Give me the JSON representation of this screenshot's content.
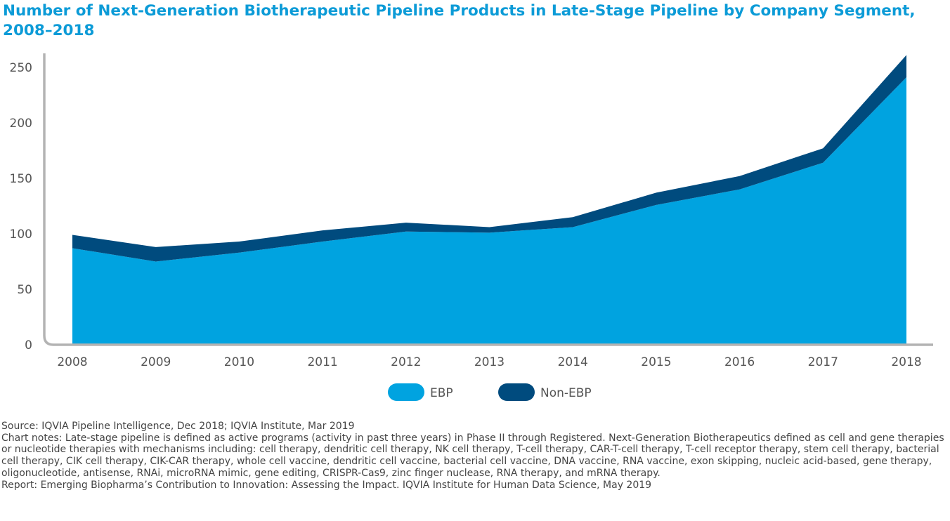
{
  "chart_data": {
    "type": "area",
    "stacked": true,
    "title": "Number of Next-Generation Biotherapeutic Pipeline Products in Late-Stage Pipeline by Company Segment, 2008–2018",
    "xlabel": "",
    "ylabel": "",
    "x": [
      "2008",
      "2009",
      "2010",
      "2011",
      "2012",
      "2013",
      "2014",
      "2015",
      "2016",
      "2017",
      "2018"
    ],
    "ylim": [
      0,
      260
    ],
    "yticks": [
      "0",
      "50",
      "100",
      "150",
      "200",
      "250"
    ],
    "grid": false,
    "legend_position": "bottom",
    "series": [
      {
        "name": "EBP",
        "color": "#00a3e0",
        "values": [
          87,
          75,
          83,
          93,
          102,
          101,
          106,
          126,
          140,
          164,
          241
        ]
      },
      {
        "name": "Non-EBP",
        "color": "#004b7e",
        "values": [
          12,
          13,
          10,
          10,
          8,
          5,
          9,
          11,
          12,
          13,
          20
        ]
      }
    ],
    "axis_color": "#b3b3b3"
  },
  "notes": {
    "source": "Source: IQVIA Pipeline Intelligence, Dec 2018; IQVIA Institute, Mar 2019",
    "chart_notes": "Chart notes: Late-stage pipeline is defined as active programs (activity in past three years) in Phase II through Registered. Next-Generation Biotherapeutics defined as cell and gene therapies or nucleotide therapies with mechanisms including: cell therapy, dendritic cell therapy, NK cell therapy, T-cell therapy, CAR-T-cell therapy, T-cell receptor therapy, stem cell therapy, bacterial cell therapy, CIK cell therapy, CIK-CAR therapy, whole cell vaccine, dendritic cell vaccine, bacterial cell vaccine, DNA vaccine, RNA vaccine, exon skipping, nucleic acid-based, gene therapy, oligonucleotide, antisense, RNAi, microRNA mimic, gene editing, CRISPR-Cas9, zinc finger nuclease, RNA therapy, and mRNA therapy.",
    "report": "Report: Emerging Biopharma’s Contribution to Innovation: Assessing the Impact. IQVIA Institute for Human Data Science, May 2019"
  }
}
